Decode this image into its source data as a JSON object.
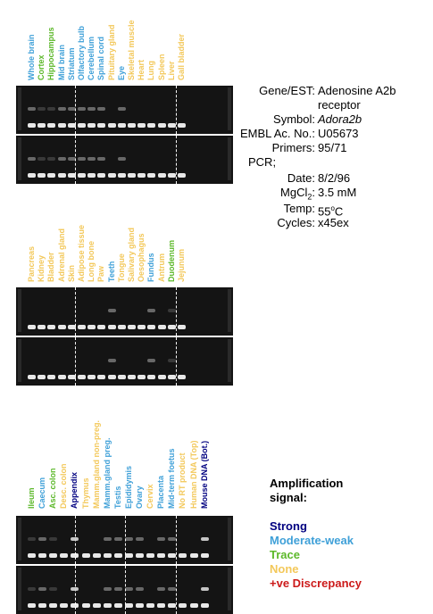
{
  "colors": {
    "strong": "#000080",
    "moderate_weak": "#3fa0d8",
    "trace": "#5cb82a",
    "none": "#f3c85a",
    "discrepancy": "#cc1a1a",
    "gel_bg": "#141414"
  },
  "panels": [
    {
      "lanes": [
        {
          "label": "Whole brain",
          "signal": "moderate_weak"
        },
        {
          "label": "Cortex",
          "signal": "trace"
        },
        {
          "label": "Hippocampus",
          "signal": "trace"
        },
        {
          "label": "Mid brain",
          "signal": "moderate_weak"
        },
        {
          "label": "Striatum",
          "signal": "moderate_weak"
        },
        {
          "label": "Olfactory bulb",
          "signal": "moderate_weak"
        },
        {
          "label": "Cerebellum",
          "signal": "moderate_weak"
        },
        {
          "label": "Spinal cord",
          "signal": "moderate_weak"
        },
        {
          "label": "Pituitary gland",
          "signal": "none"
        },
        {
          "label": "Eye",
          "signal": "moderate_weak"
        },
        {
          "label": "Skeletal muscle",
          "signal": "none"
        },
        {
          "label": "Heart",
          "signal": "none"
        },
        {
          "label": "Lung",
          "signal": "none"
        },
        {
          "label": "Spleen",
          "signal": "none"
        },
        {
          "label": "Liver",
          "signal": "none"
        },
        {
          "label": "Gall bladder",
          "signal": "none"
        }
      ]
    },
    {
      "lanes": [
        {
          "label": "Pancreas",
          "signal": "none"
        },
        {
          "label": "Kidney",
          "signal": "none"
        },
        {
          "label": "Bladder",
          "signal": "none"
        },
        {
          "label": "Adrenal gland",
          "signal": "none"
        },
        {
          "label": "Skin",
          "signal": "none"
        },
        {
          "label": "Adipose tissue",
          "signal": "none"
        },
        {
          "label": "Long bone",
          "signal": "none"
        },
        {
          "label": "Paw",
          "signal": "none"
        },
        {
          "label": "Teeth",
          "signal": "moderate_weak"
        },
        {
          "label": "Tongue",
          "signal": "none"
        },
        {
          "label": "Salivary gland",
          "signal": "none"
        },
        {
          "label": "Oesophagus",
          "signal": "none"
        },
        {
          "label": "Fundus",
          "signal": "moderate_weak"
        },
        {
          "label": "Antrum",
          "signal": "none"
        },
        {
          "label": "Duodenum",
          "signal": "trace"
        },
        {
          "label": "Jejunum",
          "signal": "none"
        }
      ]
    },
    {
      "lanes": [
        {
          "label": "Ileum",
          "signal": "trace"
        },
        {
          "label": "Caecum",
          "signal": "moderate_weak"
        },
        {
          "label": "Asc. colon",
          "signal": "trace"
        },
        {
          "label": "Desc. colon",
          "signal": "none"
        },
        {
          "label": "Appendix",
          "signal": "strong"
        },
        {
          "label": "Thymus",
          "signal": "none"
        },
        {
          "label": "Mamm.gland non-preg.",
          "signal": "none"
        },
        {
          "label": "Mamm.gland preg.",
          "signal": "moderate_weak"
        },
        {
          "label": "Testis",
          "signal": "moderate_weak"
        },
        {
          "label": "Epididymis",
          "signal": "moderate_weak"
        },
        {
          "label": "Ovary",
          "signal": "moderate_weak"
        },
        {
          "label": "Cervix",
          "signal": "none"
        },
        {
          "label": "Placenta",
          "signal": "moderate_weak"
        },
        {
          "label": "Mid-term foetus",
          "signal": "moderate_weak"
        },
        {
          "label": "No RT product",
          "signal": "none"
        },
        {
          "label": "Human DNA (Top)",
          "signal": "none"
        },
        {
          "label": "Mouse DNA (Bot.)",
          "signal": "strong"
        }
      ]
    }
  ],
  "info": [
    {
      "key": "Gene/EST:",
      "value": "Adenosine A2b",
      "value2": "receptor"
    },
    {
      "key": "Symbol:",
      "value": "Adora2b"
    },
    {
      "key": "EMBL Ac. No.:",
      "value": "U05673"
    },
    {
      "key": "Primers:",
      "value": "95/71"
    },
    {
      "key": "PCR;",
      "value": ""
    },
    {
      "key": "Date:",
      "value": "8/2/96"
    },
    {
      "key": "MgCl",
      "sub": "2",
      "key_tail": ":",
      "value": "3.5 mM"
    },
    {
      "key": "Temp:",
      "value": "55",
      "sup": "o",
      "value_tail": "C"
    },
    {
      "key": "Cycles:",
      "value": "x45ex"
    }
  ],
  "legend": {
    "title1": "Amplification",
    "title2": "signal:",
    "items": [
      {
        "label": "Strong",
        "signal": "strong"
      },
      {
        "label": "Moderate-weak",
        "signal": "moderate_weak"
      },
      {
        "label": "Trace",
        "signal": "trace"
      },
      {
        "label": "None",
        "signal": "none"
      },
      {
        "label": "+ve Discrepancy",
        "signal": "discrepancy"
      }
    ]
  }
}
